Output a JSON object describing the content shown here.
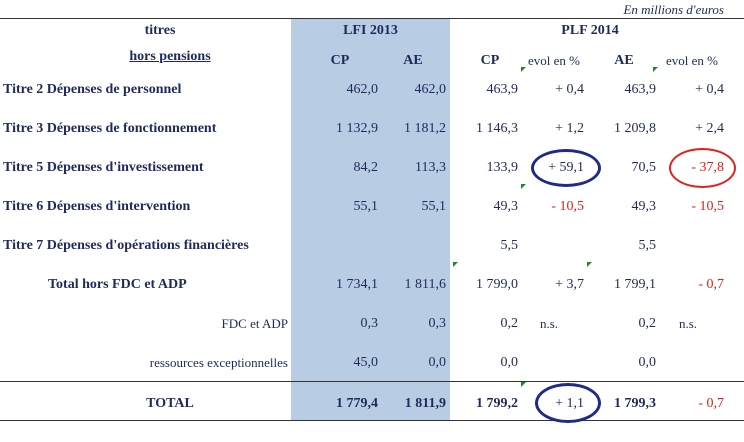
{
  "unit_label": "En millions d'euros",
  "header": {
    "titres": "titres",
    "hors_pensions": "hors pensions",
    "lfi": "LFI 2013",
    "plf": "PLF 2014",
    "cp": "CP",
    "ae": "AE",
    "evol": "evol en %"
  },
  "rows": [
    {
      "label": "Titre 2 Dépenses de personnel",
      "lfi_cp": "462,0",
      "lfi_ae": "462,0",
      "plf_cp": "463,9",
      "evol_cp": "+ 0,4",
      "plf_ae": "463,9",
      "evol_ae": "+ 0,4"
    },
    {
      "label": "Titre 3 Dépenses de fonctionnement",
      "lfi_cp": "1 132,9",
      "lfi_ae": "1 181,2",
      "plf_cp": "1 146,3",
      "evol_cp": "+ 1,2",
      "plf_ae": "1 209,8",
      "evol_ae": "+ 2,4"
    },
    {
      "label": "Titre 5 Dépenses d'investissement",
      "lfi_cp": "84,2",
      "lfi_ae": "113,3",
      "plf_cp": "133,9",
      "evol_cp": "+ 59,1",
      "plf_ae": "70,5",
      "evol_ae": "- 37,8"
    },
    {
      "label": "Titre 6 Dépenses d'intervention",
      "lfi_cp": "55,1",
      "lfi_ae": "55,1",
      "plf_cp": "49,3",
      "evol_cp": "- 10,5",
      "plf_ae": "49,3",
      "evol_ae": "- 10,5"
    },
    {
      "label": "Titre 7 Dépenses d'opérations financières",
      "lfi_cp": "",
      "lfi_ae": "",
      "plf_cp": "5,5",
      "evol_cp": "",
      "plf_ae": "5,5",
      "evol_ae": ""
    },
    {
      "label": "Total hors FDC et ADP",
      "lfi_cp": "1 734,1",
      "lfi_ae": "1 811,6",
      "plf_cp": "1 799,0",
      "evol_cp": "+ 3,7",
      "plf_ae": "1 799,1",
      "evol_ae": "- 0,7"
    },
    {
      "label": "FDC et ADP",
      "lfi_cp": "0,3",
      "lfi_ae": "0,3",
      "plf_cp": "0,2",
      "evol_cp": "n.s.",
      "plf_ae": "0,2",
      "evol_ae": "n.s."
    },
    {
      "label": "ressources exceptionnelles",
      "lfi_cp": "45,0",
      "lfi_ae": "0,0",
      "plf_cp": "0,0",
      "evol_cp": "",
      "plf_ae": "0,0",
      "evol_ae": ""
    },
    {
      "label": "TOTAL",
      "lfi_cp": "1 779,4",
      "lfi_ae": "1 811,9",
      "plf_cp": "1 799,2",
      "evol_cp": "+ 1,1",
      "plf_ae": "1 799,3",
      "evol_ae": "- 0,7"
    }
  ],
  "colors": {
    "text": "#1f2a5a",
    "negative": "#e0201a",
    "lfi_band": "#b8cce4",
    "highlight_positive": "#1f2a8a",
    "highlight_negative": "#e0201a"
  }
}
